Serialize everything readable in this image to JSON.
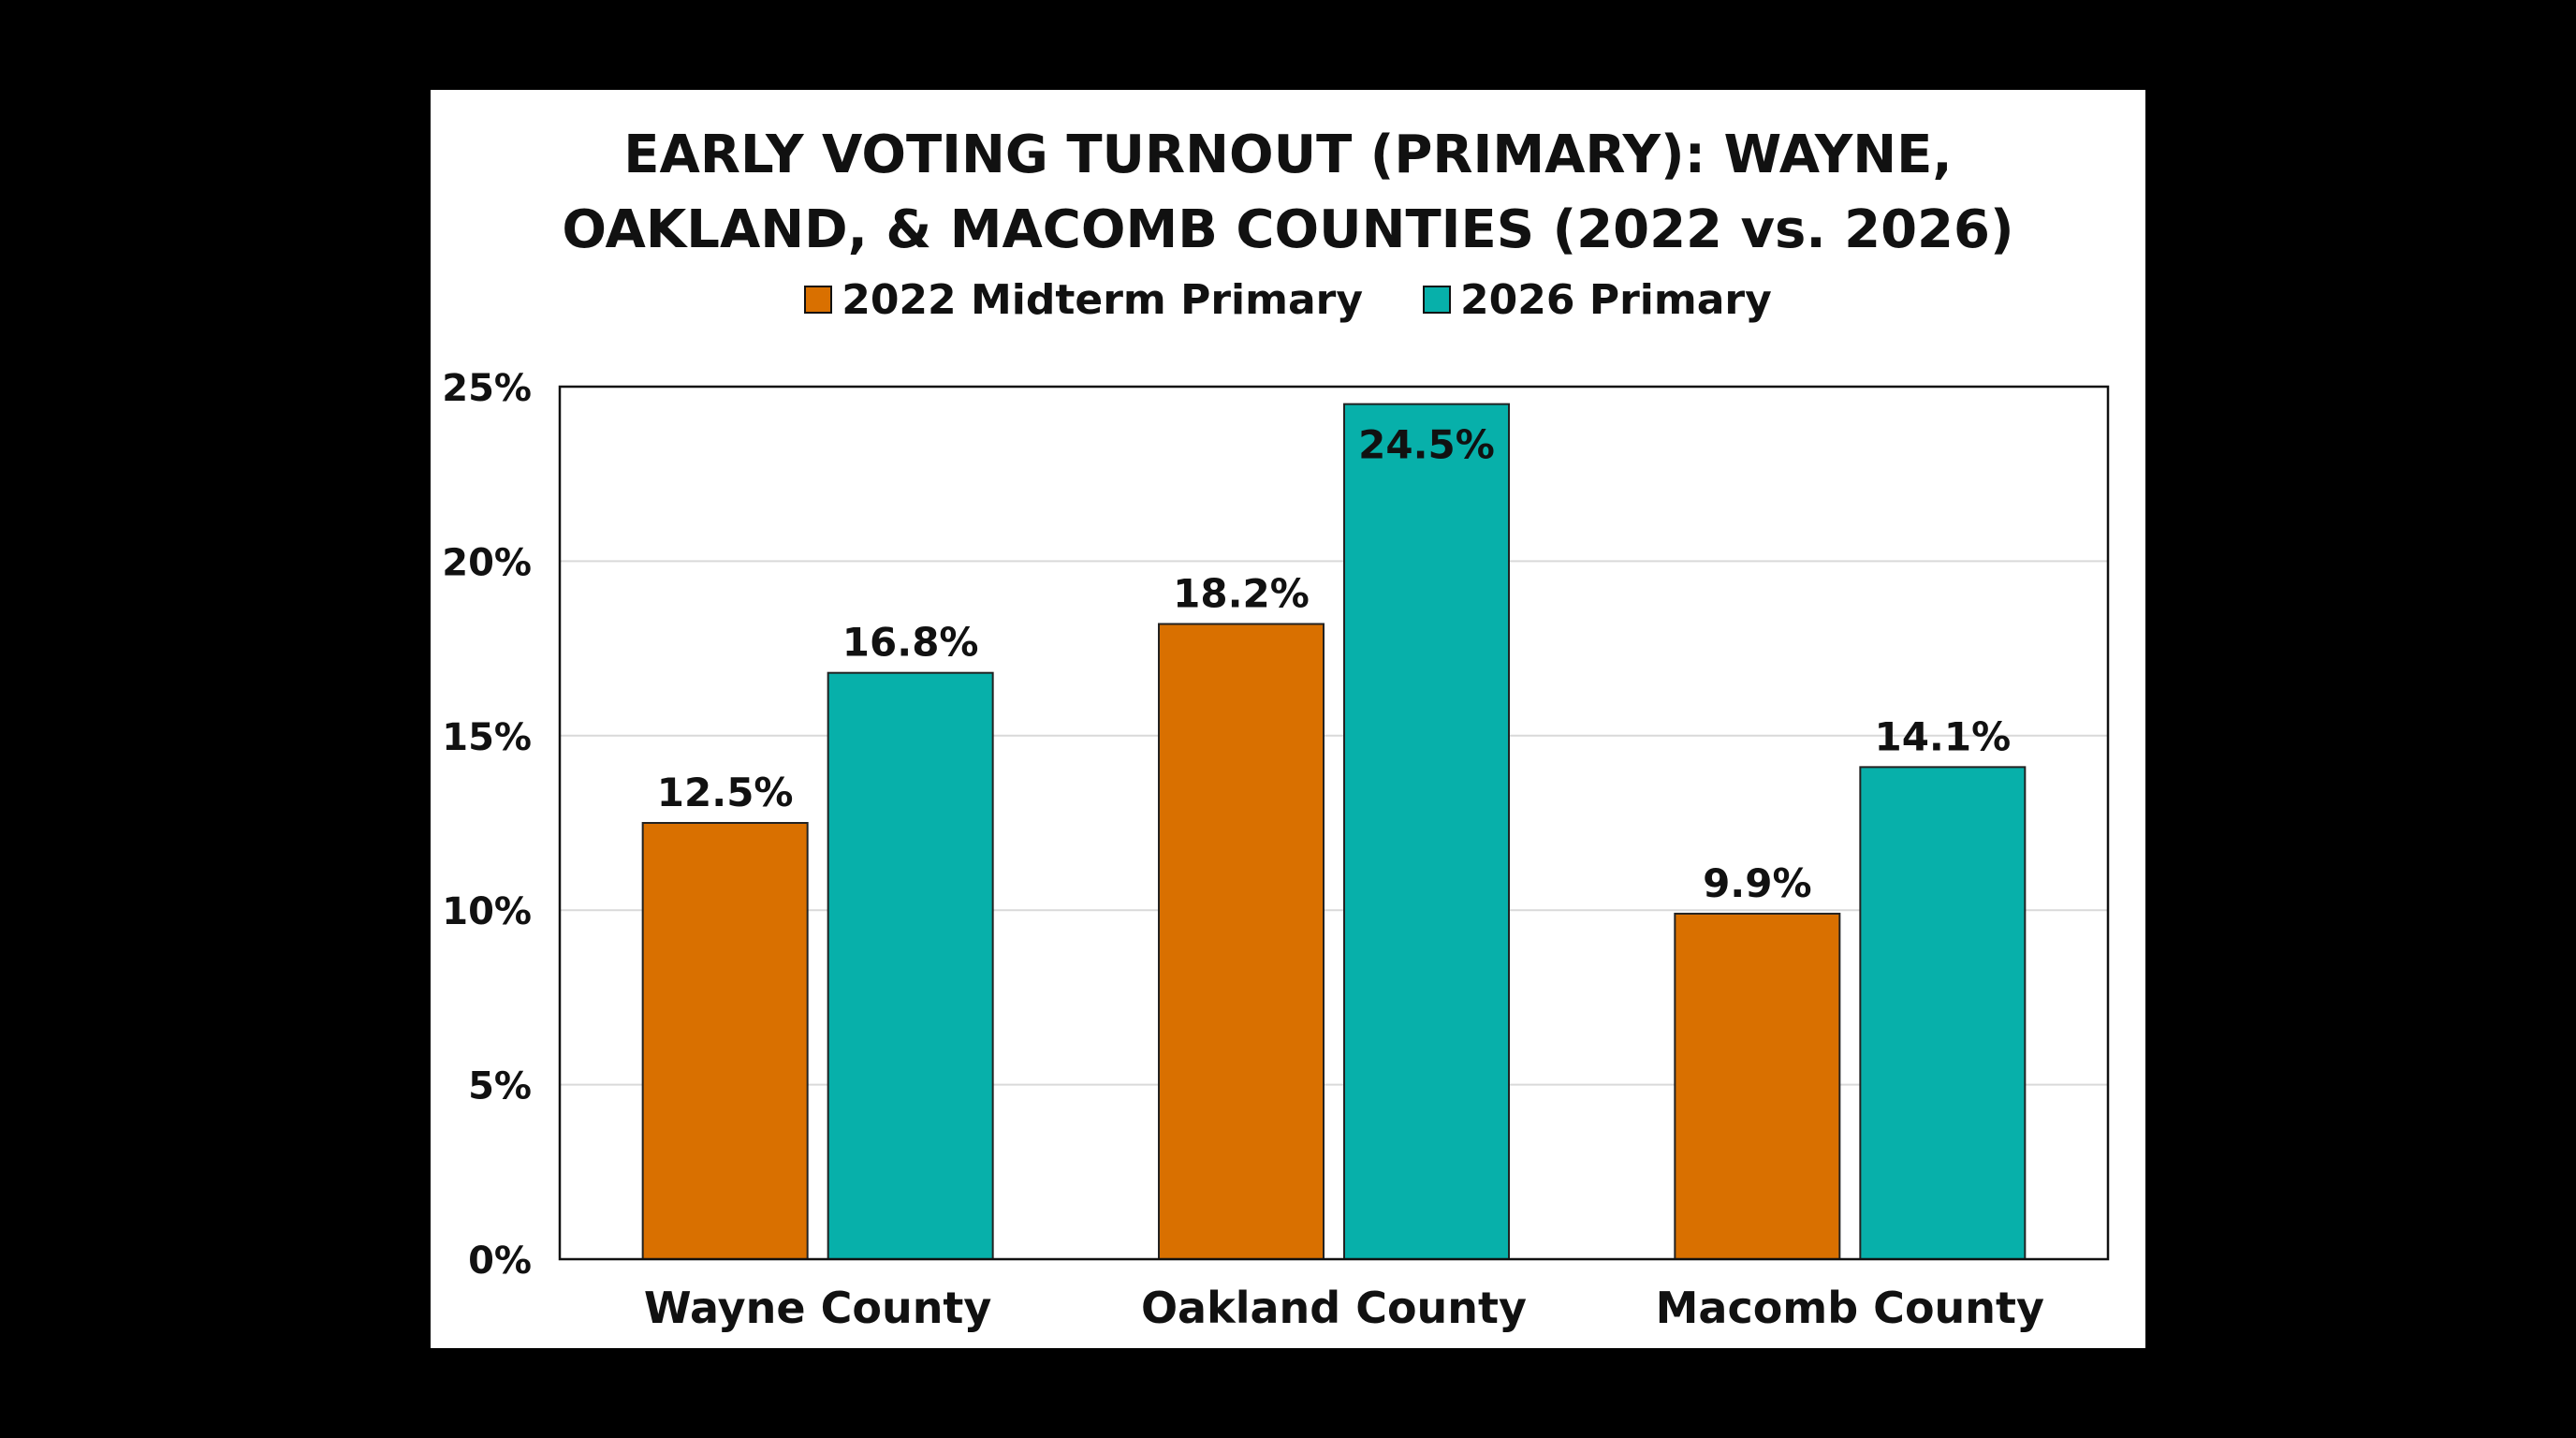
{
  "chart_data": {
    "type": "bar",
    "title_lines": [
      "EARLY VOTING TURNOUT (PRIMARY): WAYNE,",
      "OAKLAND, & MACOMB COUNTIES (2022 vs. 2026)"
    ],
    "categories": [
      "Wayne County",
      "Oakland County",
      "Macomb County"
    ],
    "series": [
      {
        "name": "2022 Midterm Primary",
        "color": "#d97000",
        "values": [
          12.5,
          18.2,
          9.9
        ],
        "labels": [
          "12.5%",
          "18.2%",
          "9.9%"
        ]
      },
      {
        "name": "2026 Primary",
        "color": "#07b0aa",
        "values": [
          16.8,
          24.5,
          14.1
        ],
        "labels": [
          "16.8%",
          "24.5%",
          "14.1%"
        ]
      }
    ],
    "ylim": [
      0,
      25
    ],
    "yticks": [
      0,
      5,
      10,
      15,
      20,
      25
    ],
    "ytick_labels": [
      "0%",
      "5%",
      "10%",
      "15%",
      "20%",
      "25%"
    ],
    "grid": true,
    "legend_position": "top"
  }
}
